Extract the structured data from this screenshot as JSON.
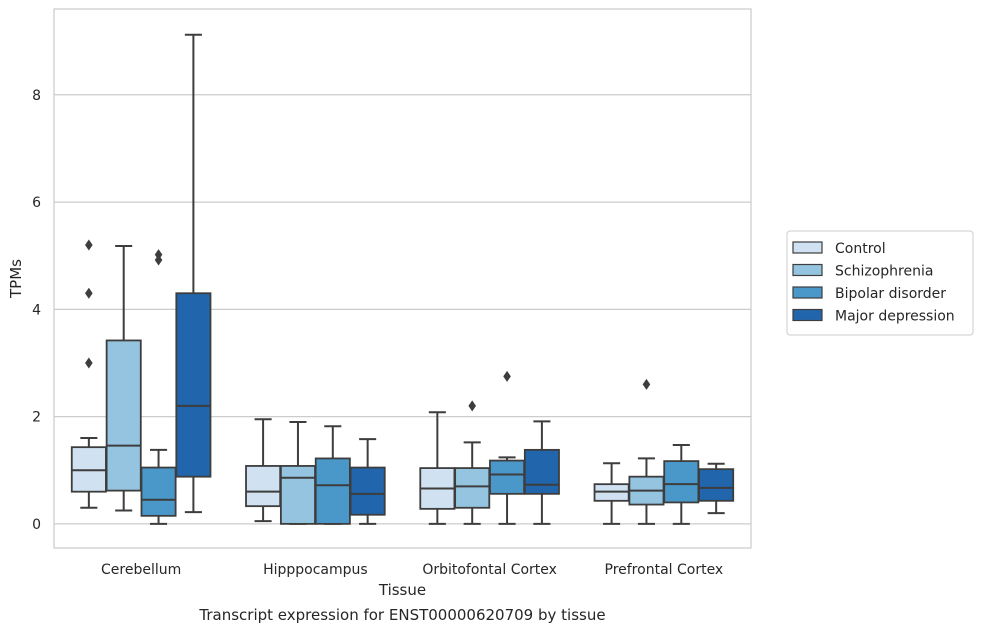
{
  "caption": "Transcript expression for ENST00000620709 by tissue",
  "chart_data": {
    "type": "box",
    "xlabel": "Tissue",
    "ylabel": "TPMs",
    "ylim": [
      -0.45,
      9.6
    ],
    "yticks": [
      0,
      2,
      4,
      6,
      8
    ],
    "grid": true,
    "legend_position": "right",
    "categories": [
      "Cerebellum",
      "Hipppocampus",
      "Orbitofontal Cortex",
      "Prefrontal Cortex"
    ],
    "series": [
      {
        "name": "Control",
        "color": "#d0e1f2",
        "boxes": [
          {
            "whisker_low": 0.3,
            "q1": 0.6,
            "median": 1.0,
            "q3": 1.43,
            "whisker_high": 1.6,
            "outliers": [
              3.0,
              4.3,
              5.2
            ]
          },
          {
            "whisker_low": 0.05,
            "q1": 0.33,
            "median": 0.6,
            "q3": 1.08,
            "whisker_high": 1.95,
            "outliers": []
          },
          {
            "whisker_low": 0.0,
            "q1": 0.28,
            "median": 0.66,
            "q3": 1.04,
            "whisker_high": 2.08,
            "outliers": []
          },
          {
            "whisker_low": 0.0,
            "q1": 0.43,
            "median": 0.6,
            "q3": 0.74,
            "whisker_high": 1.13,
            "outliers": []
          }
        ]
      },
      {
        "name": "Schizophrenia",
        "color": "#94c4df",
        "boxes": [
          {
            "whisker_low": 0.25,
            "q1": 0.62,
            "median": 1.46,
            "q3": 3.42,
            "whisker_high": 5.18,
            "outliers": []
          },
          {
            "whisker_low": 0.0,
            "q1": 0.0,
            "median": 0.86,
            "q3": 1.08,
            "whisker_high": 1.9,
            "outliers": []
          },
          {
            "whisker_low": 0.0,
            "q1": 0.3,
            "median": 0.7,
            "q3": 1.04,
            "whisker_high": 1.52,
            "outliers": [
              2.2
            ]
          },
          {
            "whisker_low": 0.0,
            "q1": 0.36,
            "median": 0.62,
            "q3": 0.88,
            "whisker_high": 1.22,
            "outliers": [
              2.6
            ]
          }
        ]
      },
      {
        "name": "Bipolar disorder",
        "color": "#4a98c9",
        "boxes": [
          {
            "whisker_low": 0.0,
            "q1": 0.15,
            "median": 0.45,
            "q3": 1.05,
            "whisker_high": 1.38,
            "outliers": [
              4.92,
              5.02
            ]
          },
          {
            "whisker_low": 0.0,
            "q1": 0.0,
            "median": 0.72,
            "q3": 1.22,
            "whisker_high": 1.82,
            "outliers": []
          },
          {
            "whisker_low": 0.0,
            "q1": 0.56,
            "median": 0.92,
            "q3": 1.18,
            "whisker_high": 1.24,
            "outliers": [
              2.75
            ]
          },
          {
            "whisker_low": 0.0,
            "q1": 0.4,
            "median": 0.74,
            "q3": 1.17,
            "whisker_high": 1.47,
            "outliers": []
          }
        ]
      },
      {
        "name": "Major depression",
        "color": "#2166ac",
        "boxes": [
          {
            "whisker_low": 0.22,
            "q1": 0.88,
            "median": 2.2,
            "q3": 4.3,
            "whisker_high": 9.12,
            "outliers": []
          },
          {
            "whisker_low": 0.0,
            "q1": 0.17,
            "median": 0.56,
            "q3": 1.05,
            "whisker_high": 1.58,
            "outliers": []
          },
          {
            "whisker_low": 0.0,
            "q1": 0.56,
            "median": 0.73,
            "q3": 1.38,
            "whisker_high": 1.91,
            "outliers": []
          },
          {
            "whisker_low": 0.2,
            "q1": 0.43,
            "median": 0.67,
            "q3": 1.02,
            "whisker_high": 1.12,
            "outliers": []
          }
        ]
      }
    ]
  }
}
